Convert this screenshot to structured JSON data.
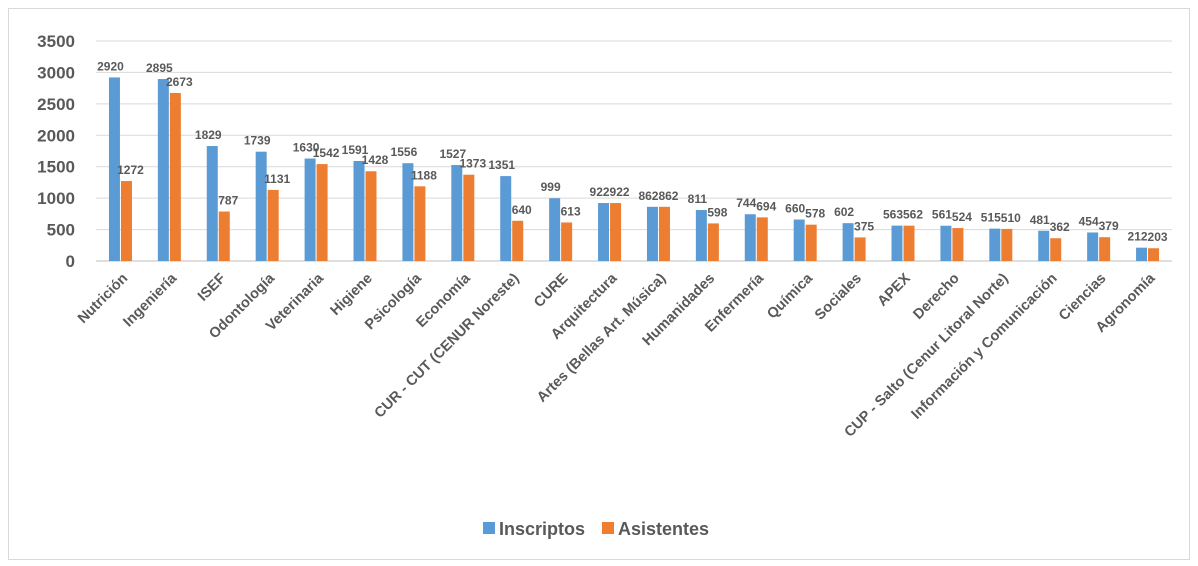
{
  "chart_data": {
    "type": "bar",
    "title": "",
    "xlabel": "",
    "ylabel": "",
    "ylim": [
      0,
      3500
    ],
    "yticks": [
      0,
      500,
      1000,
      1500,
      2000,
      2500,
      3000,
      3500
    ],
    "grid": true,
    "legend_position": "bottom",
    "categories": [
      "Nutrición",
      "Ingeniería",
      "ISEF",
      "Odontología",
      "Veterinaria",
      "Higiene",
      "Psicología",
      "Economía",
      "CUR - CUT (CENUR Noreste)",
      "CURE",
      "Arquitectura",
      "Artes (Bellas Art. Música)",
      "Humanidades",
      "Enfermería",
      "Química",
      "Sociales",
      "APEX",
      "Derecho",
      "CUP - Salto (Cenur Litoral Norte)",
      "Información y Comunicación",
      "Ciencias",
      "Agronomía"
    ],
    "series": [
      {
        "name": "Inscriptos",
        "color": "#5b9bd5",
        "values": [
          2920,
          2895,
          1829,
          1739,
          1630,
          1591,
          1556,
          1527,
          1351,
          999,
          922,
          862,
          811,
          744,
          660,
          602,
          563,
          561,
          515,
          481,
          454,
          212
        ]
      },
      {
        "name": "Asistentes",
        "color": "#ed7d31",
        "values": [
          1272,
          2673,
          787,
          1131,
          1542,
          1428,
          1188,
          1373,
          640,
          613,
          922,
          862,
          598,
          694,
          578,
          375,
          562,
          524,
          510,
          362,
          379,
          203
        ]
      }
    ]
  }
}
